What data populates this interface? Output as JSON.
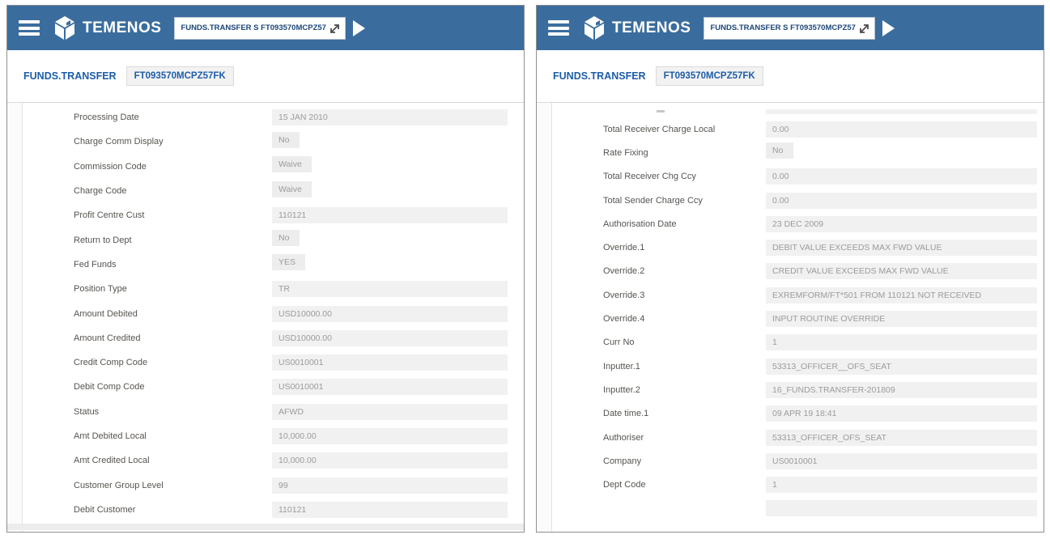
{
  "header": {
    "logo_text": "TEMENOS",
    "command_value": "FUNDS.TRANSFER S FT093570MCPZ57FK",
    "colors": {
      "appbar_blue": "#3a6d9e",
      "link_blue": "#1d5da8"
    },
    "icons": {
      "hamburger": "menu-icon (3 white bars)",
      "logo": "temenos-cube-icon",
      "expand": "expand-arrow-icon (arrow to top-right)",
      "run": "play-triangle-icon"
    }
  },
  "breadcrumb": {
    "app": "FUNDS.TRANSFER",
    "record_id": "FT093570MCPZ57FK"
  },
  "panels": [
    {
      "rows": [
        {
          "label": "Processing Date",
          "value": "15 JAN 2010",
          "style": "full"
        },
        {
          "label": "Charge Comm Display",
          "value": "No",
          "style": "box"
        },
        {
          "label": "Commission Code",
          "value": "Waive",
          "style": "box"
        },
        {
          "label": "Charge Code",
          "value": "Waive",
          "style": "box"
        },
        {
          "label": "Profit Centre Cust",
          "value": "110121",
          "style": "full"
        },
        {
          "label": "Return to Dept",
          "value": "No",
          "style": "box"
        },
        {
          "label": "Fed Funds",
          "value": "YES",
          "style": "box"
        },
        {
          "label": "Position Type",
          "value": "TR",
          "style": "full"
        },
        {
          "label": "Amount Debited",
          "value": "USD10000.00",
          "style": "full"
        },
        {
          "label": "Amount Credited",
          "value": "USD10000.00",
          "style": "full"
        },
        {
          "label": "Credit Comp Code",
          "value": "US0010001",
          "style": "full"
        },
        {
          "label": "Debit Comp Code",
          "value": "US0010001",
          "style": "full"
        },
        {
          "label": "Status",
          "value": "AFWD",
          "style": "full"
        },
        {
          "label": "Amt Debited Local",
          "value": "10,000.00",
          "style": "full"
        },
        {
          "label": "Amt Credited Local",
          "value": "10,000.00",
          "style": "full"
        },
        {
          "label": "Customer Group Level",
          "value": "99",
          "style": "full"
        },
        {
          "label": "Debit Customer",
          "value": "110121",
          "style": "full"
        }
      ]
    },
    {
      "partial_top_row": true,
      "rows": [
        {
          "label": "Total Receiver Charge Local",
          "value": "0.00",
          "style": "full"
        },
        {
          "label": "Rate Fixing",
          "value": "No",
          "style": "box"
        },
        {
          "label": "Total Receiver Chg Ccy",
          "value": "0.00",
          "style": "full"
        },
        {
          "label": "Total Sender Charge Ccy",
          "value": "0.00",
          "style": "full"
        },
        {
          "label": "Authorisation Date",
          "value": "23 DEC 2009",
          "style": "full"
        },
        {
          "label": "Override.1",
          "value": "DEBIT VALUE EXCEEDS MAX FWD VALUE",
          "style": "full"
        },
        {
          "label": "Override.2",
          "value": "CREDIT VALUE EXCEEDS MAX FWD VALUE",
          "style": "full"
        },
        {
          "label": "Override.3",
          "value": "EXREMFORM/FT*501 FROM 110121 NOT RECEIVED",
          "style": "full"
        },
        {
          "label": "Override.4",
          "value": "INPUT ROUTINE OVERRIDE",
          "style": "full"
        },
        {
          "label": "Curr No",
          "value": "1",
          "style": "full"
        },
        {
          "label": "Inputter.1",
          "value": "53313_OFFICER__OFS_SEAT",
          "style": "full"
        },
        {
          "label": "Inputter.2",
          "value": "16_FUNDS.TRANSFER-201809",
          "style": "full"
        },
        {
          "label": "Date time.1",
          "value": "09 APR 19 18:41",
          "style": "full"
        },
        {
          "label": "Authoriser",
          "value": "53313_OFFICER_OFS_SEAT",
          "style": "full"
        },
        {
          "label": "Company",
          "value": "US0010001",
          "style": "full"
        },
        {
          "label": "Dept Code",
          "value": "1",
          "style": "full"
        },
        {
          "label": "",
          "value": "",
          "style": "full"
        }
      ]
    }
  ]
}
